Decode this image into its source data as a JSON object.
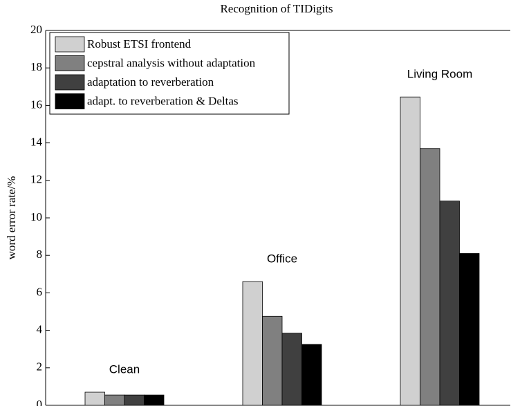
{
  "chart_data": {
    "type": "bar",
    "title": "Recognition of TIDigits",
    "y_label": "word error rate/%",
    "categories": [
      "Clean",
      "Office",
      "Living Room"
    ],
    "series": [
      {
        "name": "Robust ETSI frontend",
        "color": "#d0d0d0",
        "values": [
          0.7,
          6.6,
          16.45
        ]
      },
      {
        "name": "cepstral analysis without adaptation",
        "color": "#808080",
        "values": [
          0.55,
          4.75,
          13.7
        ]
      },
      {
        "name": "adaptation to reverberation",
        "color": "#404040",
        "values": [
          0.55,
          3.85,
          10.9
        ]
      },
      {
        "name": "adapt. to reverberation & Deltas",
        "color": "#000000",
        "values": [
          0.55,
          3.25,
          8.1
        ]
      }
    ],
    "ylim": [
      0,
      20
    ],
    "yticks": [
      0,
      2,
      4,
      6,
      8,
      10,
      12,
      14,
      16,
      18,
      20
    ],
    "legend": "upper-left"
  }
}
